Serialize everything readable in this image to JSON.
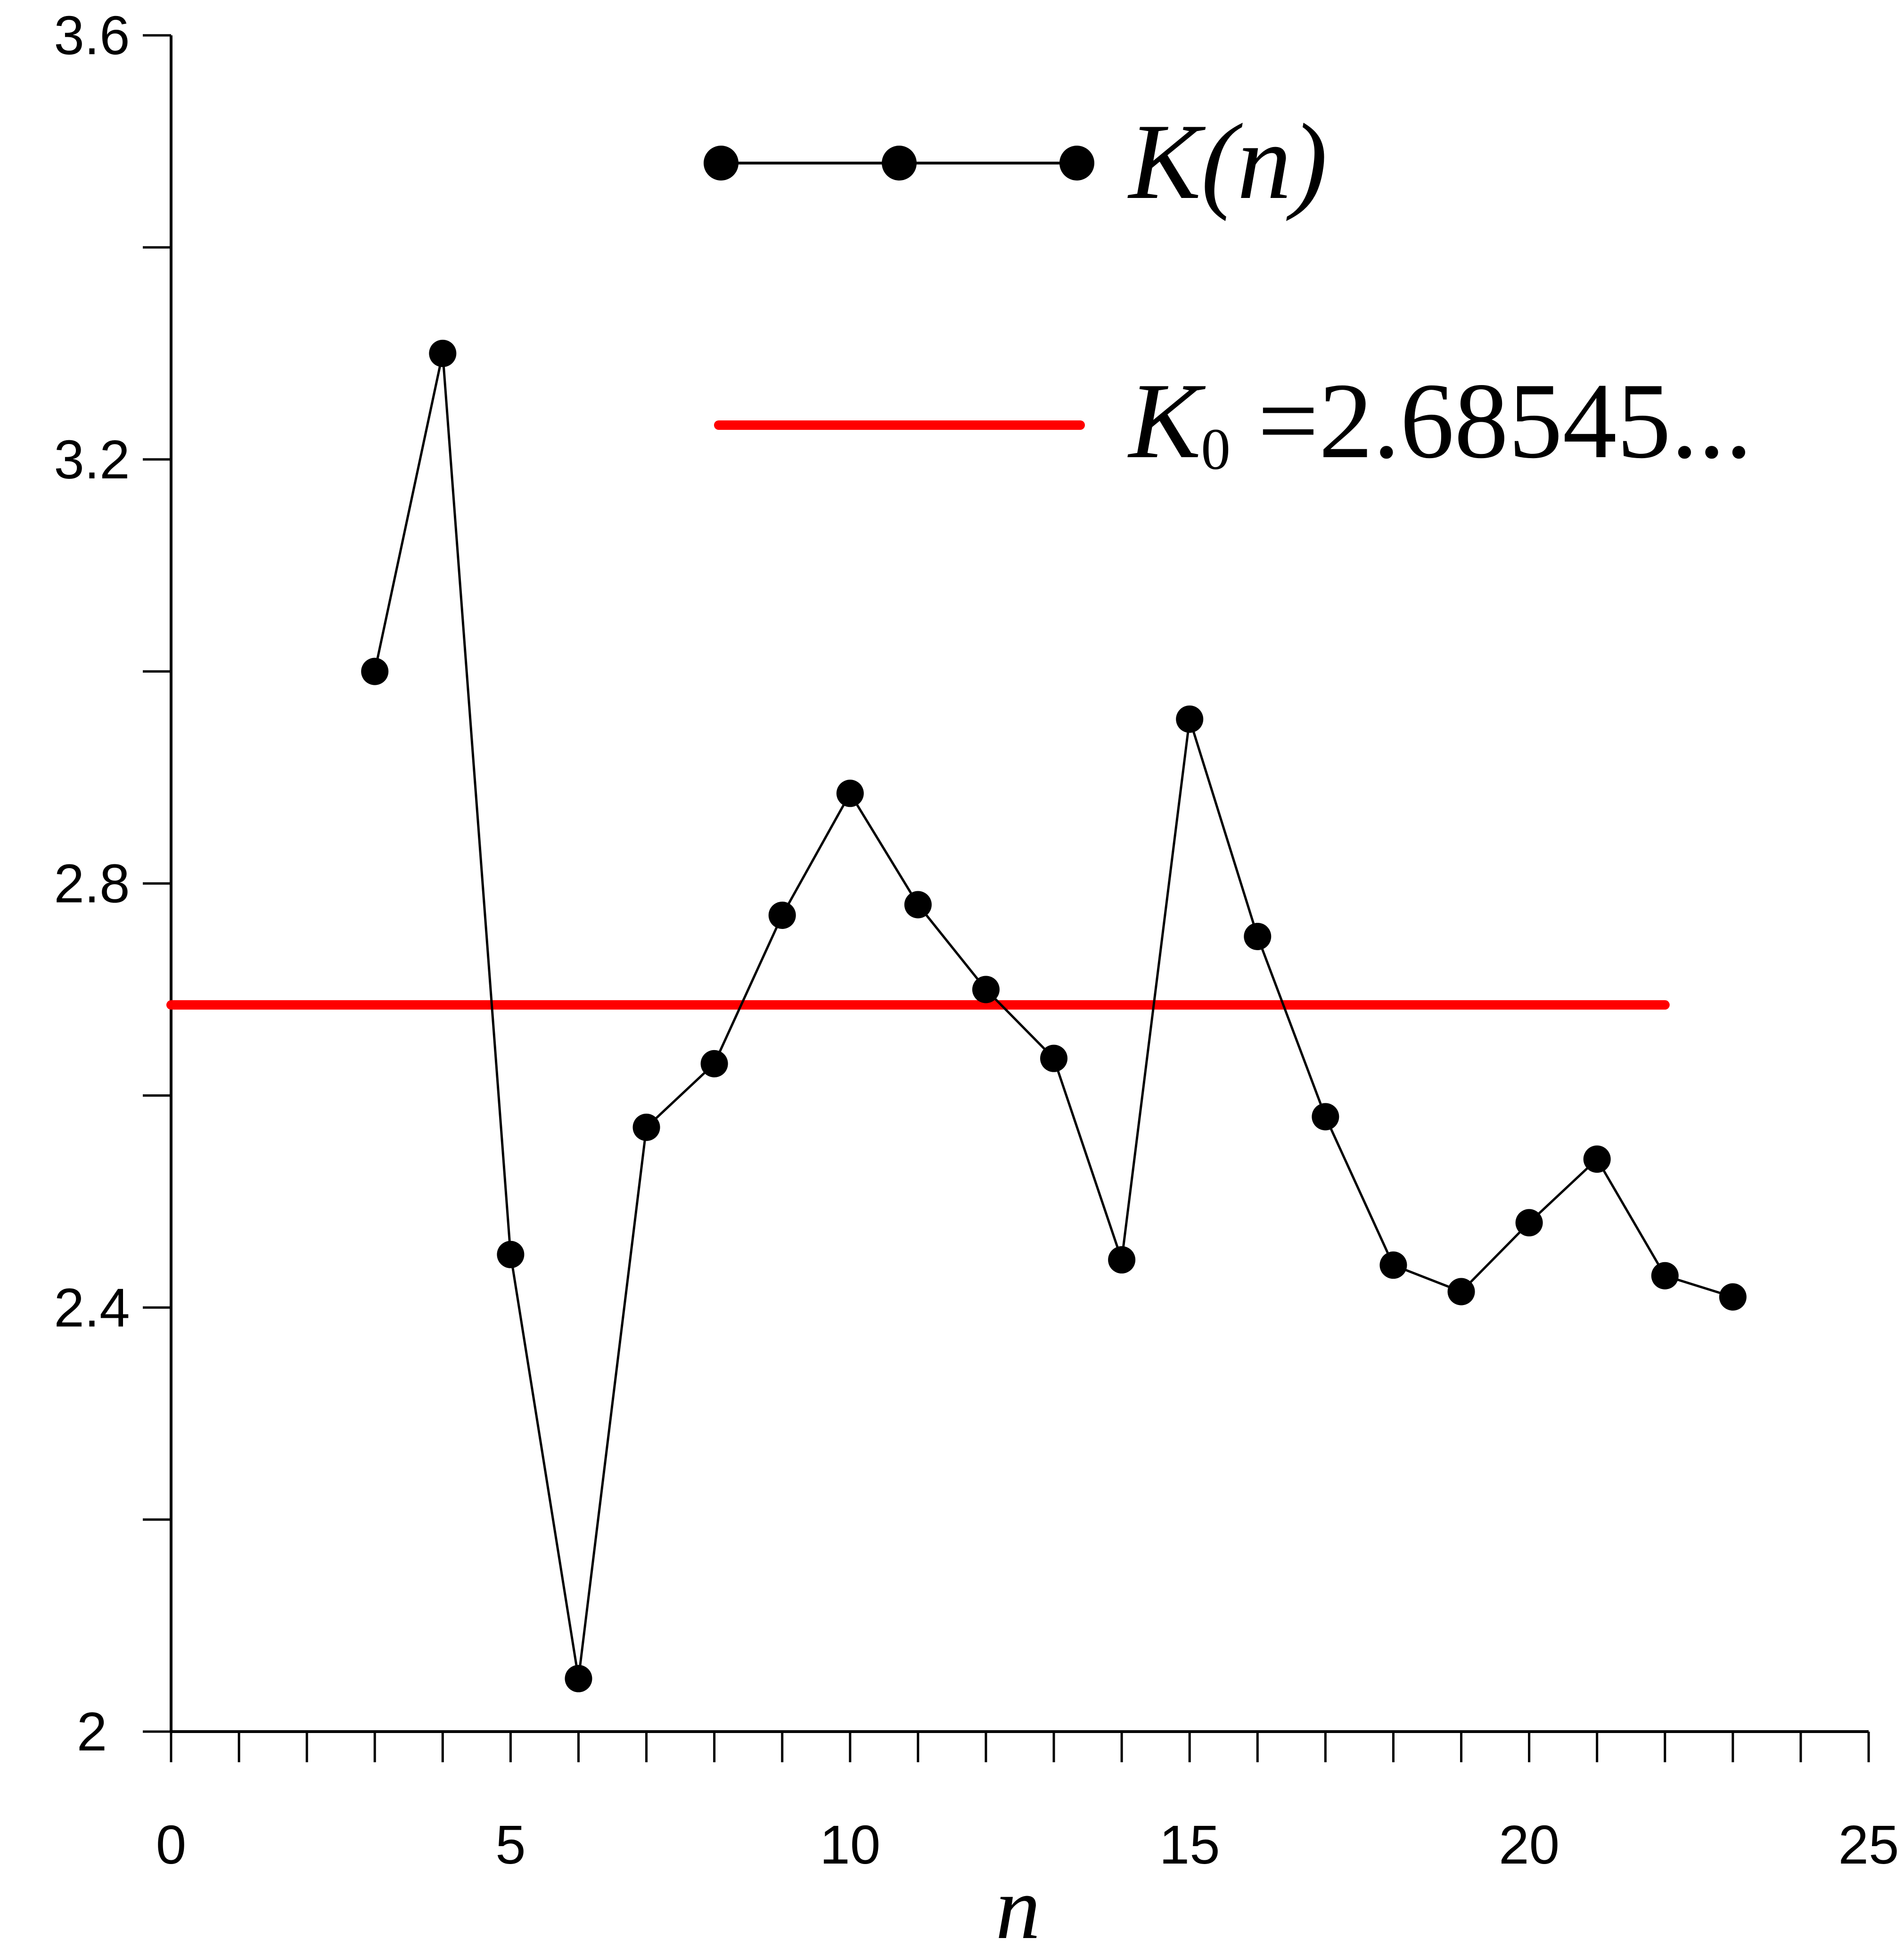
{
  "chart_data": {
    "type": "line",
    "xlabel": "n",
    "ylabel": "",
    "xlim": [
      0,
      25
    ],
    "ylim": [
      2,
      3.6
    ],
    "x_ticks": [
      0,
      5,
      10,
      15,
      20,
      25
    ],
    "x_tick_labels": [
      "0",
      "5",
      "10",
      "15",
      "20",
      "25"
    ],
    "x_minor_step": 1,
    "y_ticks": [
      2,
      2.4,
      2.8,
      3.2,
      3.6
    ],
    "y_tick_labels": [
      "2",
      "2.4",
      "2.8",
      "3.2",
      "3.6"
    ],
    "y_minor_step": 0.2,
    "grid": false,
    "legend_position": "top-right",
    "series": [
      {
        "name": "K(n)",
        "kind": "line-with-markers",
        "color": "#000000",
        "x": [
          3,
          4,
          5,
          6,
          7,
          8,
          9,
          10,
          11,
          12,
          13,
          14,
          15,
          16,
          17,
          18,
          19,
          20,
          21,
          22,
          23
        ],
        "y": [
          3.0,
          3.3,
          2.45,
          2.05,
          2.57,
          2.63,
          2.77,
          2.885,
          2.78,
          2.7,
          2.635,
          2.445,
          2.955,
          2.75,
          2.58,
          2.44,
          2.415,
          2.48,
          2.54,
          2.43,
          2.41
        ]
      },
      {
        "name": "K₀ =2.68545...",
        "kind": "horizontal-line",
        "color": "#ff0000",
        "x": [
          0,
          22
        ],
        "y": [
          2.68545,
          2.68545
        ]
      }
    ],
    "legend": {
      "entries": [
        {
          "label_main": "K(n)",
          "label_sub": "",
          "label_rest": "",
          "italic": true
        },
        {
          "label_main": "K",
          "label_sub": "0",
          "label_rest": " =2.68545...",
          "italic": true
        }
      ]
    }
  }
}
